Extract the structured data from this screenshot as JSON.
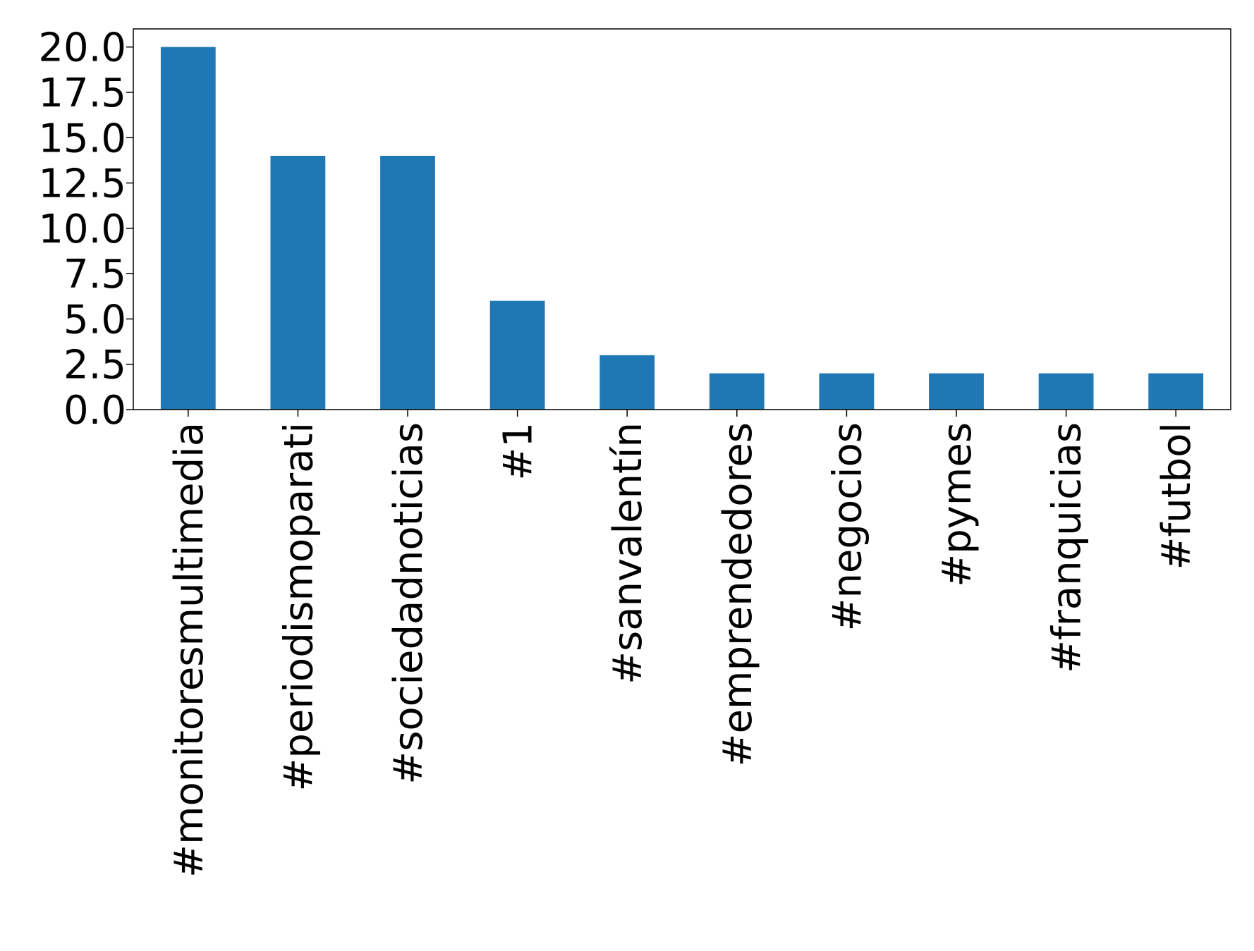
{
  "chart_data": {
    "type": "bar",
    "title": "",
    "xlabel": "",
    "ylabel": "",
    "categories": [
      "#monitoresmultimedia",
      "#periodismoparati",
      "#sociedadnoticias",
      "#1",
      "#sanvalentín",
      "#emprendedores",
      "#negocios",
      "#pymes",
      "#franquicias",
      "#futbol"
    ],
    "values": [
      20,
      14,
      14,
      6,
      3,
      2,
      2,
      2,
      2,
      2
    ],
    "ylim": [
      0,
      21
    ],
    "yticks": [
      "0.0",
      "2.5",
      "5.0",
      "7.5",
      "10.0",
      "12.5",
      "15.0",
      "17.5",
      "20.0"
    ],
    "ytick_values": [
      0,
      2.5,
      5,
      7.5,
      10,
      12.5,
      15,
      17.5,
      20
    ],
    "grid": false,
    "legend": "none",
    "bar_color": "#1f77b4"
  }
}
